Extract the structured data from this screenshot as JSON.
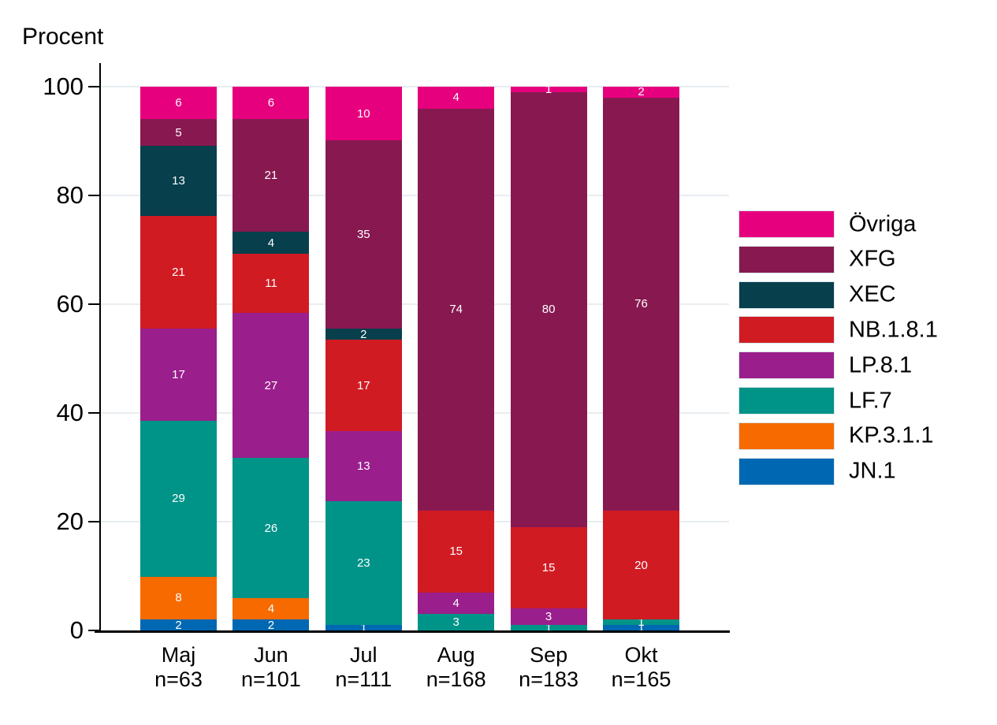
{
  "chart_data": {
    "type": "bar",
    "stacked": true,
    "ylabel": "Procent",
    "ylim": [
      0,
      100
    ],
    "yticks": [
      0,
      20,
      40,
      60,
      80,
      100
    ],
    "grid": true,
    "legend_position": "right",
    "categories": [
      "Maj",
      "Jun",
      "Jul",
      "Aug",
      "Sep",
      "Okt"
    ],
    "category_sublabels": [
      "n=63",
      "n=101",
      "n=111",
      "n=168",
      "n=183",
      "n=165"
    ],
    "series": [
      {
        "name": "Övriga",
        "color": "#e7007e",
        "values": [
          6,
          6,
          10,
          4,
          1,
          2
        ]
      },
      {
        "name": "XFG",
        "color": "#881950",
        "values": [
          5,
          21,
          35,
          74,
          80,
          76
        ]
      },
      {
        "name": "XEC",
        "color": "#073f4c",
        "values": [
          13,
          4,
          2,
          0,
          0,
          0
        ]
      },
      {
        "name": "NB.1.8.1",
        "color": "#d11b23",
        "values": [
          21,
          11,
          17,
          15,
          15,
          20
        ]
      },
      {
        "name": "LP.8.1",
        "color": "#9a1e8c",
        "values": [
          17,
          27,
          13,
          4,
          3,
          0
        ]
      },
      {
        "name": "LF.7",
        "color": "#009387",
        "values": [
          29,
          26,
          23,
          3,
          1,
          1
        ]
      },
      {
        "name": "KP.3.1.1",
        "color": "#f66a00",
        "values": [
          8,
          4,
          0,
          0,
          0,
          0
        ]
      },
      {
        "name": "JN.1",
        "color": "#0068b2",
        "values": [
          2,
          2,
          1,
          0,
          0,
          1
        ]
      }
    ]
  }
}
